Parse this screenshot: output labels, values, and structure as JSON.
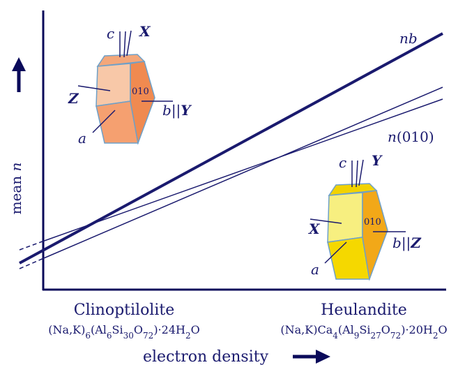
{
  "axes": {
    "y_label": [
      "mean",
      "n"
    ],
    "x_label": "electron density"
  },
  "lines": {
    "nb": "nb",
    "n010": [
      "n",
      "(010)"
    ]
  },
  "minerals": [
    {
      "name": "Clinoptilolite",
      "formula": [
        "(Na,K)",
        "6",
        "(Al",
        "6",
        "Si",
        "30",
        "O",
        "72",
        ")·24H",
        "2",
        "O"
      ]
    },
    {
      "name": "Heulandite",
      "formula": [
        "(Na,K)Ca",
        "4",
        "(Al",
        "9",
        "Si",
        "27",
        "O",
        "72",
        ")·20H",
        "2",
        "O"
      ]
    }
  ],
  "crystals": [
    {
      "c": "c",
      "top_axis": "X",
      "front_axis": "Z",
      "face": "010",
      "b": "b",
      "sep": "||",
      "b_axis": "Y",
      "a": "a"
    },
    {
      "c": "c",
      "top_axis": "Y",
      "front_axis": "X",
      "face": "010",
      "b": "b",
      "sep": "||",
      "b_axis": "Z",
      "a": "a"
    }
  ]
}
